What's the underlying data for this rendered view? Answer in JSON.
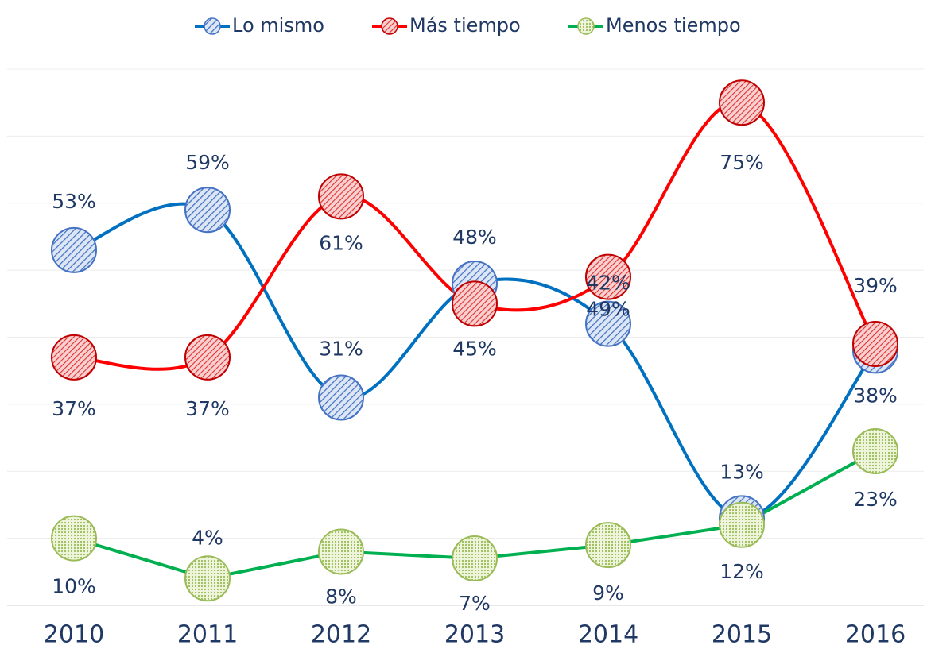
{
  "chart_data": {
    "type": "line",
    "categories": [
      "2010",
      "2011",
      "2012",
      "2013",
      "2014",
      "2015",
      "2016"
    ],
    "series": [
      {
        "name": "Lo mismo",
        "color": "#0070c0",
        "values": [
          53,
          59,
          31,
          48,
          42,
          13,
          38
        ]
      },
      {
        "name": "Más tiempo",
        "color": "#ff0000",
        "values": [
          37,
          37,
          61,
          45,
          49,
          75,
          39
        ]
      },
      {
        "name": "Menos tiempo",
        "color": "#00b050",
        "values": [
          10,
          4,
          8,
          7,
          9,
          12,
          23
        ]
      }
    ],
    "value_labels": [
      [
        "53%",
        "59%",
        "31%",
        "48%",
        "42%",
        "13%",
        "38%"
      ],
      [
        "37%",
        "37%",
        "61%",
        "45%",
        "49%",
        "75%",
        "39%"
      ],
      [
        "10%",
        "4%",
        "8%",
        "7%",
        "9%",
        "12%",
        "23%"
      ]
    ],
    "ylim": [
      0,
      80
    ],
    "yticks": [
      0,
      10,
      20,
      30,
      40,
      50,
      60,
      70,
      80
    ],
    "grid": true,
    "legend": "top"
  }
}
